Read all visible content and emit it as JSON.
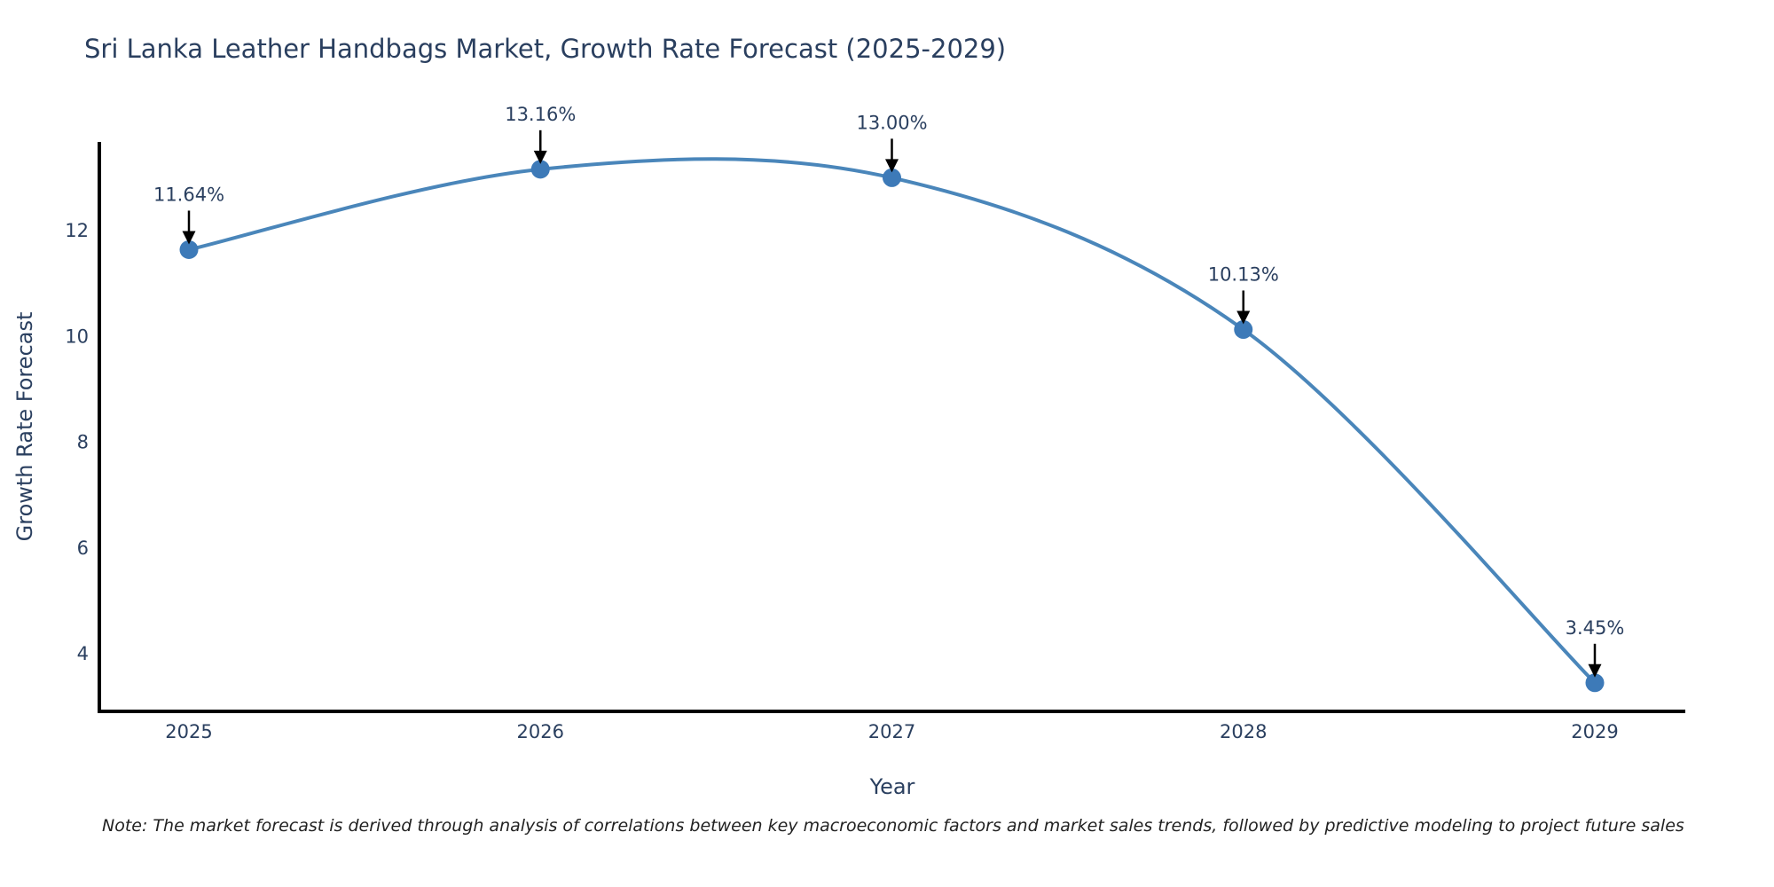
{
  "title": "Sri Lanka Leather Handbags Market, Growth Rate Forecast (2025-2029)",
  "note": "Note: The market forecast is derived through analysis of correlations between key macroeconomic factors and market sales trends, followed by predictive modeling to project future sales",
  "colors": {
    "title_text": "#2a3f5f",
    "tick_text": "#2a3f5f",
    "annotation_text": "#2a3f5f",
    "line": "#4a86ba",
    "marker": "#3d7ab8",
    "axis_line": "#000000",
    "arrow": "#000000",
    "note_text": "#222222"
  },
  "chart_data": {
    "type": "line",
    "title": "Sri Lanka Leather Handbags Market, Growth Rate Forecast (2025-2029)",
    "xlabel": "Year",
    "ylabel": "Growth Rate Forecast",
    "x": [
      2025,
      2026,
      2027,
      2028,
      2029
    ],
    "y": [
      11.64,
      13.16,
      13.0,
      10.13,
      3.45
    ],
    "point_labels": [
      "11.64%",
      "13.16%",
      "13.00%",
      "10.13%",
      "3.45%"
    ],
    "xticks": [
      "2025",
      "2026",
      "2027",
      "2028",
      "2029"
    ],
    "yticks": [
      4,
      6,
      8,
      10,
      12
    ],
    "xlim": [
      2024.75,
      2029.26
    ],
    "ylim": [
      2.94,
      13.68
    ],
    "line_shape": "spline",
    "grid": false,
    "legend": false,
    "annotations": "black arrows pointing down from each percentage label to its data point"
  }
}
